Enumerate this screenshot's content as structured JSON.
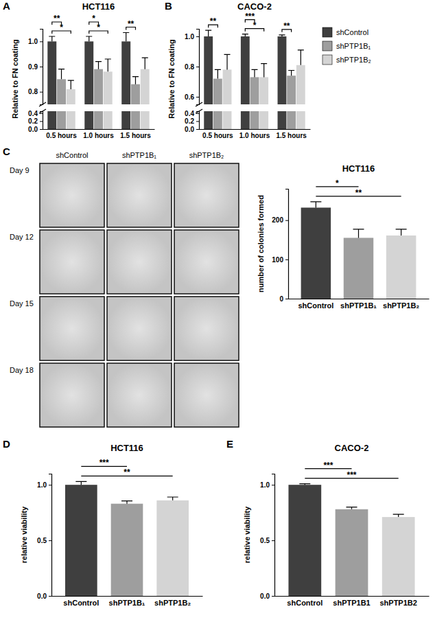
{
  "chart_data": [
    {
      "type": "bar",
      "panel_label": "A",
      "title": "HCT116",
      "y_label": "Relative to FN coating",
      "categories": [
        "0.5 hours",
        "1.0 hours",
        "1.5 hours"
      ],
      "series": [
        {
          "name": "shControl",
          "color": "#3f3f3f",
          "values": [
            1.0,
            1.0,
            1.0
          ],
          "errors": [
            0.02,
            0.02,
            0.035
          ]
        },
        {
          "name": "shPTP1B₁",
          "color": "#9e9e9e",
          "values": [
            0.85,
            0.89,
            0.83
          ],
          "errors": [
            0.04,
            0.03,
            0.03
          ]
        },
        {
          "name": "shPTP1B₂",
          "color": "#d4d4d4",
          "values": [
            0.81,
            0.88,
            0.89
          ],
          "errors": [
            0.035,
            0.05,
            0.045
          ]
        }
      ],
      "ylim": [
        0,
        1.05
      ],
      "ybreak": [
        0.45,
        0.75
      ],
      "yticks": [
        {
          "value": 0,
          "label": "0.0"
        },
        0.2,
        0.4,
        0.8,
        0.9,
        {
          "value": 1,
          "label": "1.0"
        }
      ],
      "annotations": [
        {
          "category": "0.5 hours",
          "from": "shControl",
          "to": "shPTP1B₁",
          "text": "**"
        },
        {
          "category": "0.5 hours",
          "from": "shControl",
          "to": "shPTP1B₂",
          "text": "*"
        },
        {
          "category": "1.0 hours",
          "from": "shControl",
          "to": "shPTP1B₁",
          "text": "*"
        },
        {
          "category": "1.0 hours",
          "from": "shControl",
          "to": "shPTP1B₂",
          "text": "*"
        },
        {
          "category": "1.5 hours",
          "from": "shControl",
          "to": "shPTP1B₁",
          "text": "**"
        }
      ]
    },
    {
      "type": "bar",
      "panel_label": "B",
      "title": "CACO-2",
      "y_label": "Relative to FN coating",
      "categories": [
        "0.5 hours",
        "1.0 hours",
        "1.5 hours"
      ],
      "series": [
        {
          "name": "shControl",
          "color": "#3f3f3f",
          "values": [
            1.0,
            1.0,
            1.0
          ],
          "errors": [
            0.04,
            0.015,
            0.01
          ]
        },
        {
          "name": "shPTP1B₁",
          "color": "#9e9e9e",
          "values": [
            0.72,
            0.73,
            0.74
          ],
          "errors": [
            0.06,
            0.05,
            0.035
          ]
        },
        {
          "name": "shPTP1B₂",
          "color": "#d4d4d4",
          "values": [
            0.78,
            0.73,
            0.81
          ],
          "errors": [
            0.1,
            0.09,
            0.1
          ]
        }
      ],
      "ylim": [
        0,
        1.05
      ],
      "ybreak": [
        0.45,
        0.55
      ],
      "yticks": [
        {
          "value": 0,
          "label": "0.0"
        },
        0.2,
        0.4,
        0.6,
        0.8,
        {
          "value": 1,
          "label": "1.0"
        }
      ],
      "legend": "right",
      "annotations": [
        {
          "category": "0.5 hours",
          "from": "shControl",
          "to": "shPTP1B₁",
          "text": "**"
        },
        {
          "category": "1.0 hours",
          "from": "shControl",
          "to": "shPTP1B₁",
          "text": "***"
        },
        {
          "category": "1.0 hours",
          "from": "shControl",
          "to": "shPTP1B₂",
          "text": "*"
        },
        {
          "category": "1.5 hours",
          "from": "shControl",
          "to": "shPTP1B₁",
          "text": "**"
        }
      ]
    },
    {
      "type": "bar",
      "title": "HCT116",
      "y_label": "number of colonies formed",
      "categories": [
        "shControl",
        "shPTP1B₁",
        "shPTP1B₂"
      ],
      "values": [
        232,
        155,
        161
      ],
      "errors": [
        15,
        22,
        16
      ],
      "colors": [
        "#3f3f3f",
        "#9e9e9e",
        "#d4d4d4"
      ],
      "ylim": [
        0,
        280
      ],
      "yticks": [
        0,
        100,
        200
      ],
      "annotations": [
        {
          "from": "shControl",
          "to": "shPTP1B₁",
          "text": "*"
        },
        {
          "from": "shControl",
          "to": "shPTP1B₂",
          "text": "**"
        }
      ]
    },
    {
      "type": "bar",
      "panel_label": "D",
      "title": "HCT116",
      "y_label": "relative viability",
      "categories": [
        "shControl",
        "shPTP1B₁",
        "shPTP1B₂"
      ],
      "values": [
        1.0,
        0.83,
        0.86
      ],
      "errors": [
        0.03,
        0.025,
        0.03
      ],
      "colors": [
        "#3f3f3f",
        "#9e9e9e",
        "#d4d4d4"
      ],
      "ylim": [
        0,
        1.1
      ],
      "yticks": [
        {
          "value": 0,
          "label": "0.0"
        },
        0.5,
        {
          "value": 1,
          "label": "1.0"
        }
      ],
      "annotations": [
        {
          "from": "shControl",
          "to": "shPTP1B₁",
          "text": "***"
        },
        {
          "from": "shControl",
          "to": "shPTP1B₂",
          "text": "**"
        }
      ]
    },
    {
      "type": "bar",
      "panel_label": "E",
      "title": "CACO-2",
      "y_label": "relative viability",
      "categories": [
        "shControl",
        "shPTP1B1",
        "shPTP1B2"
      ],
      "values": [
        1.0,
        0.78,
        0.71
      ],
      "errors": [
        0.01,
        0.02,
        0.025
      ],
      "colors": [
        "#3f3f3f",
        "#9e9e9e",
        "#d4d4d4"
      ],
      "ylim": [
        0,
        1.1
      ],
      "yticks": [
        {
          "value": 0,
          "label": "0.0"
        },
        0.5,
        {
          "value": 1,
          "label": "1.0"
        }
      ],
      "annotations": [
        {
          "from": "shControl",
          "to": "shPTP1B1",
          "text": "***"
        },
        {
          "from": "shControl",
          "to": "shPTP1B2",
          "text": "***"
        }
      ]
    }
  ],
  "image_grid": {
    "panel_label": "C",
    "columns": [
      "shControl",
      "shPTP1B₁",
      "shPTP1B₂"
    ],
    "rows": [
      "Day 9",
      "Day 12",
      "Day 15",
      "Day 18"
    ]
  }
}
